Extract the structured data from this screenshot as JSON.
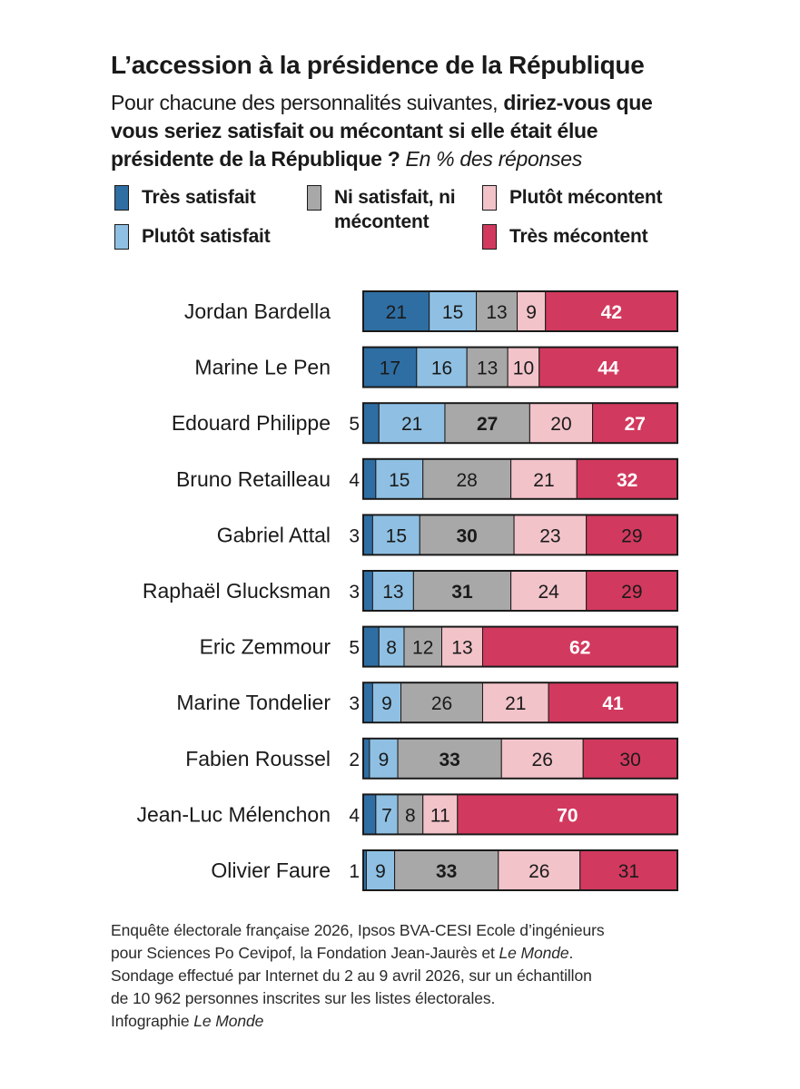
{
  "title": "L’accession à la présidence de la République",
  "subtitle": {
    "part1": "Pour chacune des personnalités suivantes, ",
    "part2_bold": "diriez-vous que vous seriez satisfait ou mécontant si elle était élue présidente de la République ?",
    "part3_italic": " En % des réponses"
  },
  "legend": [
    {
      "label": "Très satisfait",
      "color": "#2f6ea3"
    },
    {
      "label": "Plutôt satisfait",
      "color": "#8fc0e3"
    },
    {
      "label": "Ni satisfait, ni mécontent",
      "color": "#a8a8a8"
    },
    {
      "label": "Plutôt mécontent",
      "color": "#f2c3c9"
    },
    {
      "label": "Très mécontent",
      "color": "#d2395e"
    }
  ],
  "chart_data": {
    "type": "bar",
    "orientation": "horizontal",
    "stacked": true,
    "categories": [
      "Jordan Bardella",
      "Marine Le Pen",
      "Edouard Philippe",
      "Bruno Retailleau",
      "Gabriel Attal",
      "Raphaël Glucksman",
      "Eric Zemmour",
      "Marine Tondelier",
      "Fabien Roussel",
      "Jean-Luc Mélenchon",
      "Olivier Faure"
    ],
    "series": [
      {
        "name": "Très satisfait",
        "color": "#2f6ea3",
        "values": [
          21,
          17,
          5,
          4,
          3,
          3,
          5,
          3,
          2,
          4,
          1
        ]
      },
      {
        "name": "Plutôt satisfait",
        "color": "#8fc0e3",
        "values": [
          15,
          16,
          21,
          15,
          15,
          13,
          8,
          9,
          9,
          7,
          9
        ]
      },
      {
        "name": "Ni satisfait, ni mécontent",
        "color": "#a8a8a8",
        "values": [
          13,
          13,
          27,
          28,
          30,
          31,
          12,
          26,
          33,
          8,
          33
        ]
      },
      {
        "name": "Plutôt mécontent",
        "color": "#f2c3c9",
        "values": [
          9,
          10,
          20,
          21,
          23,
          24,
          13,
          21,
          26,
          11,
          26
        ]
      },
      {
        "name": "Très mécontent",
        "color": "#d2395e",
        "values": [
          42,
          44,
          27,
          32,
          29,
          29,
          62,
          41,
          30,
          70,
          31
        ]
      }
    ],
    "bold_values": [
      [
        false,
        false,
        false,
        false,
        true
      ],
      [
        false,
        false,
        false,
        false,
        true
      ],
      [
        false,
        false,
        true,
        false,
        true
      ],
      [
        false,
        false,
        false,
        false,
        true
      ],
      [
        false,
        false,
        true,
        false,
        false
      ],
      [
        false,
        false,
        true,
        false,
        false
      ],
      [
        false,
        false,
        false,
        false,
        true
      ],
      [
        false,
        false,
        false,
        false,
        true
      ],
      [
        false,
        false,
        true,
        false,
        false
      ],
      [
        false,
        false,
        false,
        false,
        true
      ],
      [
        false,
        false,
        true,
        false,
        false
      ]
    ],
    "xlim": [
      0,
      100
    ]
  },
  "footer": {
    "line1": "Enquête électorale française 2026, Ipsos BVA-CESI Ecole d’ingénieurs",
    "line2a": "pour Sciences Po Cevipof, la Fondation Jean-Jaurès et ",
    "line2b_italic": "Le Monde",
    "line2c": ".",
    "line3": "Sondage effectué par Internet du 2 au 9 avril 2026, sur un échantillon",
    "line4": "de 10 962 personnes inscrites sur les listes électorales.",
    "line5a": "Infographie ",
    "line5b_italic": "Le Monde"
  }
}
